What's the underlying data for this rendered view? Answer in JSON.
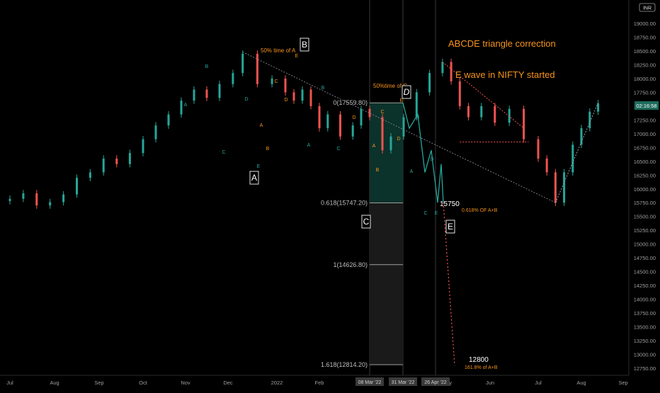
{
  "chart_data": {
    "type": "candlestick",
    "instrument": "NIFTY",
    "currency_badge": "INR",
    "current_time": "02:16:58",
    "y_axis": {
      "ticks": [
        12750,
        13000,
        13250,
        13500,
        13750,
        14000,
        14250,
        14500,
        14750,
        15000,
        15250,
        15500,
        15750,
        16000,
        16250,
        16500,
        16750,
        17000,
        17250,
        17500,
        17750,
        18000,
        18250,
        18500,
        18750,
        19000
      ],
      "range": [
        12700,
        19300
      ]
    },
    "x_axis": {
      "labels": [
        "Jul",
        "Aug",
        "Sep",
        "Oct",
        "Nov",
        "Dec",
        "2022",
        "Feb",
        "Mar",
        "Apr",
        "May",
        "Jun",
        "Jul",
        "Aug",
        "Sep"
      ],
      "highlighted_dates": [
        "08 Mar '22",
        "31 Mar '22",
        "26 Apr '22"
      ]
    },
    "colors": {
      "up": "#26a69a",
      "down": "#ef5350",
      "orange": "#f7931a",
      "fib_zone": "#0d3b32",
      "grid_bg": "#000000"
    },
    "candles_xy": [
      [
        -0.5,
        15850,
        15900
      ],
      [
        -0.3,
        15880,
        15780
      ],
      [
        0,
        15780,
        15820
      ],
      [
        0.3,
        15820,
        15920
      ],
      [
        0.6,
        15920,
        15700
      ],
      [
        0.9,
        15700,
        15760
      ],
      [
        1.2,
        15760,
        15900
      ],
      [
        1.5,
        15900,
        16200
      ],
      [
        1.8,
        16200,
        16300
      ],
      [
        2.1,
        16300,
        16550
      ],
      [
        2.4,
        16550,
        16450
      ],
      [
        2.7,
        16450,
        16650
      ],
      [
        3.0,
        16650,
        16900
      ],
      [
        3.3,
        16900,
        17150
      ],
      [
        3.6,
        17150,
        17350
      ],
      [
        3.9,
        17350,
        17600
      ],
      [
        4.2,
        17600,
        17800
      ],
      [
        4.5,
        17800,
        17650
      ],
      [
        4.8,
        17650,
        17900
      ],
      [
        5.1,
        17900,
        18100
      ],
      [
        5.3,
        18100,
        18450
      ],
      [
        5.6,
        18450,
        17900
      ],
      [
        5.9,
        17900,
        18000
      ],
      [
        6.2,
        18000,
        17750
      ],
      [
        6.4,
        17750,
        17600
      ],
      [
        6.6,
        17600,
        17800
      ],
      [
        6.8,
        17800,
        17500
      ],
      [
        7.0,
        17500,
        17100
      ],
      [
        7.2,
        17100,
        17350
      ],
      [
        7.5,
        17350,
        16950
      ],
      [
        7.8,
        16950,
        17150
      ],
      [
        8.0,
        17150,
        17450
      ],
      [
        8.2,
        17450,
        17300
      ],
      [
        8.5,
        17300,
        16700
      ],
      [
        8.7,
        16700,
        16950
      ],
      [
        9.0,
        16950,
        17300
      ],
      [
        9.3,
        17300,
        17750
      ],
      [
        9.6,
        17750,
        18100
      ],
      [
        9.9,
        18100,
        18300
      ],
      [
        10.1,
        18300,
        17950
      ],
      [
        10.3,
        17950,
        17500
      ],
      [
        10.5,
        17500,
        17300
      ],
      [
        10.8,
        17300,
        17500
      ],
      [
        11.1,
        17500,
        17200
      ],
      [
        11.4,
        17200,
        17450
      ],
      [
        11.7,
        17450,
        16900
      ],
      [
        12.0,
        16900,
        16550
      ],
      [
        12.2,
        16550,
        16300
      ],
      [
        12.4,
        16300,
        15750
      ],
      [
        12.6,
        15750,
        16300
      ],
      [
        12.8,
        16300,
        16800
      ],
      [
        13.0,
        16800,
        17100
      ],
      [
        13.2,
        17100,
        17400
      ],
      [
        13.4,
        17400,
        17550
      ]
    ],
    "fib_levels": [
      {
        "label": "0(17559.80)",
        "value": 17559.8
      },
      {
        "label": "0.618(15747.20)",
        "value": 15747.2
      },
      {
        "label": "1(14626.80)",
        "value": 14626.8
      },
      {
        "label": "1.618(12814.20)",
        "value": 12814.2
      }
    ],
    "projection": [
      17559.8,
      17100,
      17350,
      16300,
      16700,
      15750,
      16450,
      15750,
      12800
    ],
    "annotations": {
      "title_1": "ABCDE triangle correction",
      "title_2": "E wave in NIFTY started",
      "wave_A": "A",
      "wave_B": "B",
      "wave_C": "C",
      "wave_D": "D",
      "wave_E": "E",
      "note_50_a": "50% time of  A",
      "note_50_c": "50%time of C",
      "level_15750": "15750",
      "note_618": "0.618% OF A+B",
      "level_12800": "12800",
      "note_1618": "161.8% of A+B",
      "sub_B": "B",
      "sub_A": "A",
      "sub_C": "C",
      "sub_D": "D",
      "sub_E": "E"
    }
  }
}
